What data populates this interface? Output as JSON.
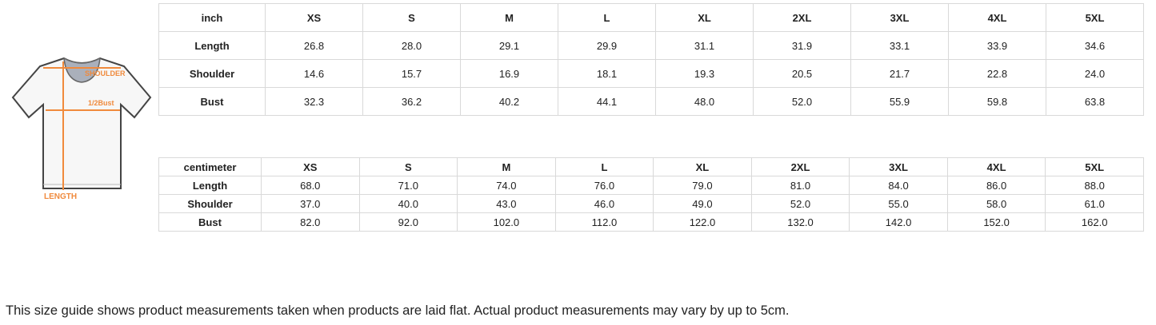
{
  "diagram": {
    "labels": {
      "shoulder": "SHOULDER",
      "half_bust": "1/2Bust",
      "length": "LENGTH"
    },
    "accent_color": "#f08a3c"
  },
  "inch_table": {
    "unit": "inch",
    "sizes": [
      "XS",
      "S",
      "M",
      "L",
      "XL",
      "2XL",
      "3XL",
      "4XL",
      "5XL"
    ],
    "rows": [
      {
        "label": "Length",
        "values": [
          "26.8",
          "28.0",
          "29.1",
          "29.9",
          "31.1",
          "31.9",
          "33.1",
          "33.9",
          "34.6"
        ]
      },
      {
        "label": "Shoulder",
        "values": [
          "14.6",
          "15.7",
          "16.9",
          "18.1",
          "19.3",
          "20.5",
          "21.7",
          "22.8",
          "24.0"
        ]
      },
      {
        "label": "Bust",
        "values": [
          "32.3",
          "36.2",
          "40.2",
          "44.1",
          "48.0",
          "52.0",
          "55.9",
          "59.8",
          "63.8"
        ]
      }
    ]
  },
  "cm_table": {
    "unit": "centimeter",
    "sizes": [
      "XS",
      "S",
      "M",
      "L",
      "XL",
      "2XL",
      "3XL",
      "4XL",
      "5XL"
    ],
    "rows": [
      {
        "label": "Length",
        "values": [
          "68.0",
          "71.0",
          "74.0",
          "76.0",
          "79.0",
          "81.0",
          "84.0",
          "86.0",
          "88.0"
        ]
      },
      {
        "label": "Shoulder",
        "values": [
          "37.0",
          "40.0",
          "43.0",
          "46.0",
          "49.0",
          "52.0",
          "55.0",
          "58.0",
          "61.0"
        ]
      },
      {
        "label": "Bust",
        "values": [
          "82.0",
          "92.0",
          "102.0",
          "112.0",
          "122.0",
          "132.0",
          "142.0",
          "152.0",
          "162.0"
        ]
      }
    ]
  },
  "note": "This size guide shows product measurements taken when products are laid flat. Actual product measurements may vary by up to 5cm."
}
